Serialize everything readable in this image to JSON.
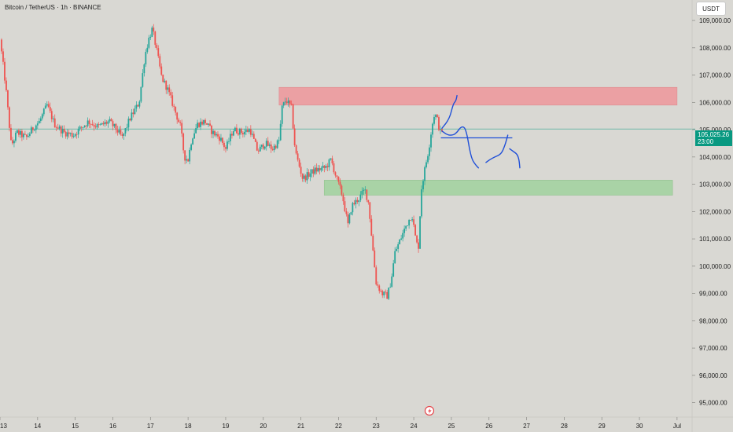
{
  "header": {
    "title": "Bitcoin / TetherUS · 1h · BINANCE",
    "currency": "USDT"
  },
  "last_price": {
    "value": 105025.26,
    "label": "105,025.26",
    "countdown": "23:00"
  },
  "colors": {
    "background": "#d9d8d3",
    "up": "#26a69a",
    "down": "#ef5350",
    "resistance_zone": "#eba0a3",
    "support_zone": "#a9d3a6",
    "drawing": "#1f4fd8",
    "price_line": "#089981"
  },
  "chart_data": {
    "type": "candlestick",
    "title": "Bitcoin / TetherUS · 1h · BINANCE",
    "y_axis": {
      "min": 94500,
      "max": 109750,
      "side": "right",
      "ticks": [
        {
          "value": 95000,
          "label": "95,000.00"
        },
        {
          "value": 96000,
          "label": "96,000.00"
        },
        {
          "value": 97000,
          "label": "97,000.00"
        },
        {
          "value": 98000,
          "label": "98,000.00"
        },
        {
          "value": 99000,
          "label": "99,000.00"
        },
        {
          "value": 100000,
          "label": "100,000.00"
        },
        {
          "value": 101000,
          "label": "101,000.00"
        },
        {
          "value": 102000,
          "label": "102,000.00"
        },
        {
          "value": 103000,
          "label": "103,000.00"
        },
        {
          "value": 104000,
          "label": "104,000.00"
        },
        {
          "value": 105000,
          "label": "105,000.00"
        },
        {
          "value": 106000,
          "label": "106,000.00"
        },
        {
          "value": 107000,
          "label": "107,000.00"
        },
        {
          "value": 108000,
          "label": "108,000.00"
        },
        {
          "value": 109000,
          "label": "109,000.00"
        }
      ]
    },
    "x_axis": {
      "unit": "day",
      "min": 13,
      "max": 31.4,
      "ticks": [
        {
          "value": 13,
          "label": "13"
        },
        {
          "value": 14,
          "label": "14"
        },
        {
          "value": 15,
          "label": "15"
        },
        {
          "value": 16,
          "label": "16"
        },
        {
          "value": 17,
          "label": "17"
        },
        {
          "value": 18,
          "label": "18"
        },
        {
          "value": 19,
          "label": "19"
        },
        {
          "value": 20,
          "label": "20"
        },
        {
          "value": 21,
          "label": "21"
        },
        {
          "value": 22,
          "label": "22"
        },
        {
          "value": 23,
          "label": "23"
        },
        {
          "value": 24,
          "label": "24"
        },
        {
          "value": 25,
          "label": "25"
        },
        {
          "value": 26,
          "label": "26"
        },
        {
          "value": 27,
          "label": "27"
        },
        {
          "value": 28,
          "label": "28"
        },
        {
          "value": 29,
          "label": "29"
        },
        {
          "value": 30,
          "label": "30"
        },
        {
          "value": 31,
          "label": "Jul"
        }
      ]
    },
    "price_path": [
      [
        13.0,
        108300
      ],
      [
        13.15,
        106600
      ],
      [
        13.3,
        104400
      ],
      [
        13.45,
        104900
      ],
      [
        13.7,
        104700
      ],
      [
        13.9,
        105100
      ],
      [
        14.05,
        105300
      ],
      [
        14.25,
        105900
      ],
      [
        14.45,
        105200
      ],
      [
        14.7,
        104900
      ],
      [
        14.95,
        104800
      ],
      [
        15.1,
        105000
      ],
      [
        15.35,
        105300
      ],
      [
        15.6,
        105100
      ],
      [
        15.9,
        105300
      ],
      [
        16.1,
        105000
      ],
      [
        16.25,
        104700
      ],
      [
        16.45,
        105400
      ],
      [
        16.7,
        106000
      ],
      [
        16.85,
        107700
      ],
      [
        16.95,
        108300
      ],
      [
        17.05,
        108700
      ],
      [
        17.15,
        108000
      ],
      [
        17.3,
        106900
      ],
      [
        17.45,
        106500
      ],
      [
        17.6,
        105900
      ],
      [
        17.8,
        105100
      ],
      [
        17.9,
        104000
      ],
      [
        18.0,
        103900
      ],
      [
        18.1,
        104700
      ],
      [
        18.25,
        105200
      ],
      [
        18.45,
        105300
      ],
      [
        18.65,
        104900
      ],
      [
        18.85,
        104700
      ],
      [
        19.0,
        104300
      ],
      [
        19.2,
        105000
      ],
      [
        19.45,
        104900
      ],
      [
        19.65,
        105000
      ],
      [
        19.85,
        104200
      ],
      [
        20.05,
        104500
      ],
      [
        20.25,
        104300
      ],
      [
        20.42,
        104600
      ],
      [
        20.5,
        105800
      ],
      [
        20.6,
        106100
      ],
      [
        20.75,
        105800
      ],
      [
        20.85,
        104200
      ],
      [
        21.05,
        103200
      ],
      [
        21.35,
        103500
      ],
      [
        21.65,
        103600
      ],
      [
        21.8,
        103900
      ],
      [
        21.95,
        103200
      ],
      [
        22.1,
        102600
      ],
      [
        22.25,
        101500
      ],
      [
        22.35,
        102200
      ],
      [
        22.55,
        102500
      ],
      [
        22.7,
        102800
      ],
      [
        22.8,
        102300
      ],
      [
        22.9,
        100800
      ],
      [
        23.0,
        99400
      ],
      [
        23.15,
        99000
      ],
      [
        23.3,
        98900
      ],
      [
        23.4,
        99500
      ],
      [
        23.5,
        100500
      ],
      [
        23.65,
        101000
      ],
      [
        23.8,
        101500
      ],
      [
        23.95,
        101900
      ],
      [
        24.05,
        101000
      ],
      [
        24.12,
        100600
      ],
      [
        24.2,
        102800
      ],
      [
        24.3,
        103600
      ],
      [
        24.4,
        104300
      ],
      [
        24.48,
        105100
      ],
      [
        24.55,
        105600
      ],
      [
        24.62,
        105400
      ],
      [
        24.7,
        104900
      ],
      [
        24.78,
        105026
      ]
    ],
    "zones": [
      {
        "type": "resistance",
        "x_start": 20.42,
        "x_end": 31.0,
        "y_low": 105900,
        "y_high": 106550
      },
      {
        "type": "support",
        "x_start": 21.62,
        "x_end": 30.88,
        "y_low": 102600,
        "y_high": 103150
      }
    ],
    "horizontal_lines": [
      {
        "type": "drawn-level",
        "x_start": 24.72,
        "x_end": 26.62,
        "y": 104700
      },
      {
        "type": "last-price",
        "y": 105025.26
      }
    ],
    "drawings": [
      {
        "name": "projection-up",
        "points": [
          [
            24.75,
            105050
          ],
          [
            24.95,
            105400
          ],
          [
            25.05,
            105950
          ],
          [
            25.12,
            106050
          ],
          [
            25.15,
            106250
          ]
        ]
      },
      {
        "name": "projection-curve",
        "points": [
          [
            24.75,
            104950
          ],
          [
            24.9,
            104800
          ],
          [
            25.05,
            104800
          ],
          [
            25.15,
            104900
          ],
          [
            25.25,
            105100
          ],
          [
            25.35,
            105100
          ],
          [
            25.42,
            104800
          ],
          [
            25.48,
            104300
          ],
          [
            25.55,
            103900
          ],
          [
            25.65,
            103700
          ],
          [
            25.72,
            103600
          ]
        ]
      },
      {
        "name": "projection-bounce",
        "points": [
          [
            25.92,
            103800
          ],
          [
            26.02,
            103900
          ],
          [
            26.15,
            104000
          ],
          [
            26.32,
            104100
          ],
          [
            26.42,
            104400
          ],
          [
            26.5,
            104800
          ]
        ]
      },
      {
        "name": "projection-drop",
        "points": [
          [
            26.55,
            104300
          ],
          [
            26.65,
            104200
          ],
          [
            26.75,
            104100
          ],
          [
            26.8,
            103900
          ],
          [
            26.82,
            103600
          ]
        ]
      }
    ]
  }
}
